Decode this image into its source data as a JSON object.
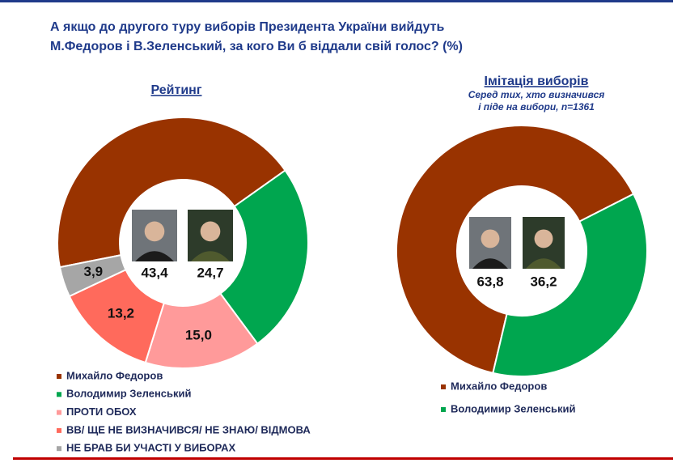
{
  "title": [
    "А якщо до другого туру виборів Президента України вийдуть",
    "М.Федоров і В.Зеленський, за кого Ви б віддали свій голос? (%)"
  ],
  "chart_data": [
    {
      "type": "donut",
      "title": "Рейтинг",
      "categories": [
        "Михайло Федоров",
        "Володимир Зеленський",
        "ПРОТИ ОБОХ",
        "ВВ/ ЩЕ НЕ ВИЗНАЧИВСЯ/ НЕ ЗНАЮ/ ВІДМОВА",
        "НЕ БРАВ БИ УЧАСТІ У ВИБОРАХ"
      ],
      "values": [
        43.4,
        24.7,
        15.0,
        13.2,
        3.9
      ],
      "value_labels": [
        "43,4",
        "24,7",
        "15,0",
        "13,2",
        "3,9"
      ],
      "colors": [
        "#993300",
        "#00a64f",
        "#ff9a9a",
        "#ff6a5c",
        "#a6a6a6"
      ]
    },
    {
      "type": "donut",
      "title": "Імітація виборів",
      "subtitle": [
        "Серед тих, хто визначився",
        "і піде на вибори, n=1361"
      ],
      "categories": [
        "Михайло Федоров",
        "Володимир Зеленський"
      ],
      "values": [
        63.8,
        36.2
      ],
      "value_labels": [
        "63,8",
        "36,2"
      ],
      "colors": [
        "#993300",
        "#00a64f"
      ]
    }
  ]
}
